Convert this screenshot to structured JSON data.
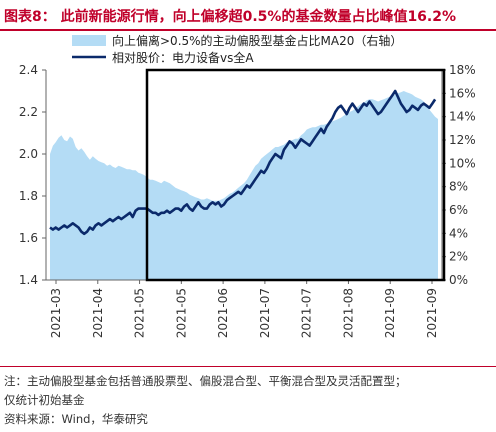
{
  "figure": {
    "title": "图表8：  此前新能源行情，向上偏移超0.5%的基金数量占比峰值16.2%",
    "note_line1": "注：主动偏股型基金包括普通股票型、偏股混合型、平衡混合型及灵活配置型；",
    "note_line2": "仅统计初始基金",
    "source": "资料来源：Wind，华泰研究"
  },
  "colors": {
    "title": "#c0002a",
    "area": "#b4dcf5",
    "line": "#0b2a6b",
    "box": "#000000",
    "axis_text": "#333333"
  },
  "chart_data": {
    "type": "line",
    "title": "",
    "xlabel": "",
    "ylabel": "",
    "ylim": [
      1.4,
      2.4
    ],
    "y2lim": [
      0,
      18
    ],
    "yticks": [
      "2.4",
      "2.2",
      "2.0",
      "1.8",
      "1.6",
      "1.4"
    ],
    "y2ticks": [
      "18%",
      "16%",
      "14%",
      "12%",
      "10%",
      "8%",
      "6%",
      "4%",
      "2%",
      "0%"
    ],
    "xticks": [
      "2021-03",
      "2021-04",
      "2021-05",
      "2021-05",
      "2021-06",
      "2021-07",
      "2021-07",
      "2021-08",
      "2021-09",
      "2021-09"
    ],
    "legend": [
      "向上偏离>0.5%的主动偏股型基金占比MA20（右轴）",
      "相对股价：电力设备vs全A"
    ],
    "legend_position": "top-left",
    "highlight_box": {
      "from": "2021-05",
      "to": "2021-09 end"
    },
    "series": [
      {
        "name": "向上偏离>0.5%的主动偏股型基金占比MA20（右轴）",
        "axis": "right",
        "kind": "area",
        "values": [
          10.8,
          11.5,
          11.8,
          12.2,
          12.4,
          12.0,
          11.9,
          12.3,
          12.1,
          11.4,
          11.1,
          11.3,
          11.0,
          10.6,
          10.3,
          10.6,
          10.4,
          10.2,
          10.1,
          10.0,
          9.8,
          9.9,
          9.7,
          9.6,
          9.8,
          9.7,
          9.6,
          9.5,
          9.5,
          9.4,
          9.4,
          9.2,
          9.1,
          9.0,
          8.8,
          8.6,
          8.6,
          8.5,
          8.4,
          8.3,
          8.5,
          8.4,
          8.3,
          8.1,
          7.9,
          7.8,
          7.7,
          7.6,
          7.5,
          7.3,
          7.2,
          7.1,
          7.0,
          6.9,
          6.9,
          7.0,
          6.9,
          6.8,
          6.8,
          6.8,
          6.9,
          7.0,
          7.2,
          7.4,
          7.5,
          7.7,
          7.9,
          8.1,
          8.3,
          8.6,
          9.0,
          9.4,
          9.8,
          10.0,
          10.4,
          10.6,
          10.8,
          11.0,
          11.2,
          11.4,
          11.4,
          11.5,
          11.6,
          11.8,
          11.9,
          12.0,
          12.1,
          12.1,
          12.4,
          12.6,
          12.9,
          13.0,
          13.1,
          13.1,
          13.2,
          13.3,
          13.3,
          13.4,
          13.5,
          13.6,
          13.7,
          13.8,
          13.9,
          14.1,
          14.2,
          14.4,
          14.5,
          14.7,
          14.9,
          15.1,
          15.2,
          15.4,
          15.5,
          15.5,
          15.4,
          15.3,
          15.4,
          15.5,
          15.6,
          15.7,
          15.8,
          15.9,
          16.0,
          16.1,
          16.2,
          16.1,
          16.0,
          15.9,
          15.7,
          15.6,
          15.5,
          15.3,
          15.0,
          14.6,
          14.3,
          14.0,
          13.8
        ]
      },
      {
        "name": "相对股价：电力设备vs全A",
        "axis": "left",
        "kind": "line",
        "values": [
          1.65,
          1.64,
          1.65,
          1.64,
          1.65,
          1.66,
          1.65,
          1.66,
          1.67,
          1.66,
          1.65,
          1.63,
          1.62,
          1.63,
          1.65,
          1.64,
          1.66,
          1.67,
          1.66,
          1.67,
          1.68,
          1.69,
          1.68,
          1.69,
          1.7,
          1.69,
          1.7,
          1.71,
          1.72,
          1.7,
          1.73,
          1.74,
          1.74,
          1.74,
          1.74,
          1.73,
          1.72,
          1.72,
          1.71,
          1.72,
          1.72,
          1.73,
          1.72,
          1.73,
          1.74,
          1.74,
          1.73,
          1.75,
          1.76,
          1.74,
          1.73,
          1.75,
          1.77,
          1.75,
          1.74,
          1.74,
          1.76,
          1.77,
          1.76,
          1.77,
          1.75,
          1.76,
          1.78,
          1.79,
          1.8,
          1.81,
          1.82,
          1.81,
          1.83,
          1.85,
          1.84,
          1.86,
          1.88,
          1.9,
          1.92,
          1.91,
          1.93,
          1.96,
          1.98,
          2.0,
          1.99,
          1.98,
          2.02,
          2.04,
          2.06,
          2.05,
          2.03,
          2.05,
          2.07,
          2.06,
          2.05,
          2.04,
          2.06,
          2.08,
          2.1,
          2.12,
          2.1,
          2.13,
          2.15,
          2.17,
          2.2,
          2.22,
          2.23,
          2.21,
          2.19,
          2.22,
          2.24,
          2.22,
          2.2,
          2.22,
          2.24,
          2.23,
          2.25,
          2.23,
          2.21,
          2.19,
          2.2,
          2.22,
          2.24,
          2.26,
          2.28,
          2.3,
          2.27,
          2.24,
          2.22,
          2.2,
          2.21,
          2.23,
          2.22,
          2.21,
          2.23,
          2.24,
          2.23,
          2.22,
          2.24,
          2.26
        ]
      }
    ]
  }
}
